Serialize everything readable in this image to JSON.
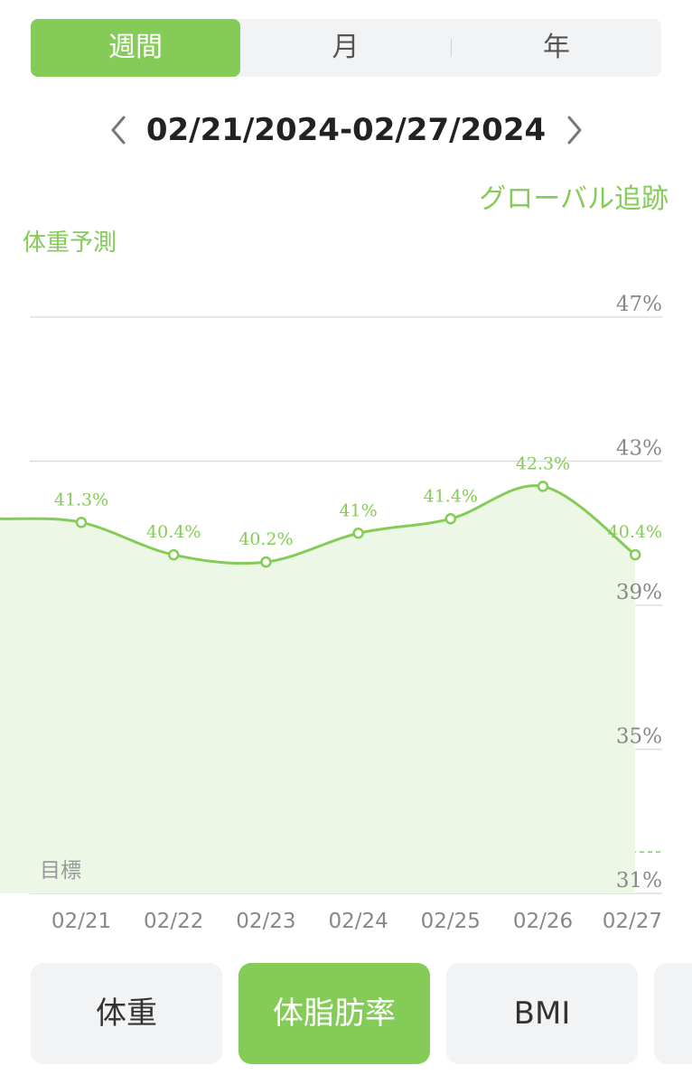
{
  "period_tabs": [
    {
      "label": "週間",
      "active": true
    },
    {
      "label": "月",
      "active": false
    },
    {
      "label": "年",
      "active": false
    }
  ],
  "date_range": "02/21/2024-02/27/2024",
  "global_tracking_label": "グローバル追跡",
  "chart_title": "体重予測",
  "chart_data": {
    "type": "area",
    "x": [
      "02/21",
      "02/22",
      "02/23",
      "02/24",
      "02/25",
      "02/26",
      "02/27"
    ],
    "series": [
      {
        "values": [
          41.3,
          40.4,
          40.2,
          41.0,
          41.4,
          42.3,
          40.4
        ]
      }
    ],
    "data_labels": [
      "41.3%",
      "40.4%",
      "40.2%",
      "41%",
      "41.4%",
      "42.3%",
      "40.4%"
    ],
    "y_ticks": [
      47,
      43,
      39,
      35,
      31
    ],
    "y_tick_labels": [
      "47%",
      "43%",
      "39%",
      "35%",
      "31%"
    ],
    "ylim": [
      31,
      47
    ],
    "target_value": 32,
    "target_label": "目標",
    "grid": true
  },
  "metric_buttons": [
    {
      "label": "体重",
      "active": false
    },
    {
      "label": "体脂肪率",
      "active": true
    },
    {
      "label": "BMI",
      "active": false
    }
  ],
  "colors": {
    "accent": "#85cb57",
    "fill": "#edf7e5",
    "grid": "#dddddd"
  }
}
